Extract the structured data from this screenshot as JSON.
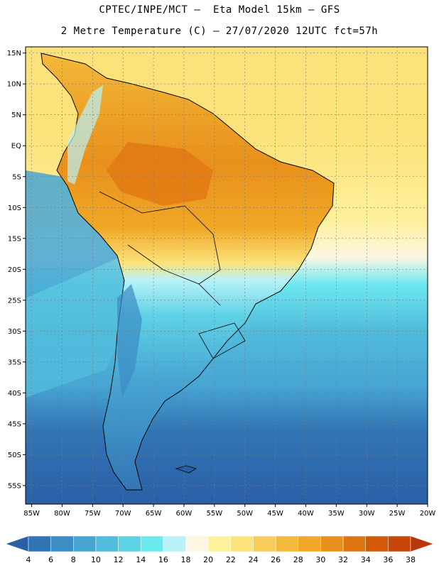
{
  "header": {
    "line1": "CPTEC/INPE/MCT –  Eta Model 15km – GFS",
    "line2": "2 Metre Temperature (C) – 27/07/2020 12UTC fct=57h"
  },
  "map": {
    "lat_range": [
      -58,
      16
    ],
    "lon_range": [
      -86,
      -20
    ],
    "lat_labels": [
      "15N",
      "10N",
      "5N",
      "EQ",
      "5S",
      "10S",
      "15S",
      "20S",
      "25S",
      "30S",
      "35S",
      "40S",
      "45S",
      "50S",
      "55S"
    ],
    "lat_values": [
      15,
      10,
      5,
      0,
      -5,
      -10,
      -15,
      -20,
      -25,
      -30,
      -35,
      -40,
      -45,
      -50,
      -55
    ],
    "lon_labels": [
      "85W",
      "80W",
      "75W",
      "70W",
      "65W",
      "60W",
      "55W",
      "50W",
      "45W",
      "40W",
      "35W",
      "30W",
      "25W",
      "20W"
    ],
    "lon_values": [
      -85,
      -80,
      -75,
      -70,
      -65,
      -60,
      -55,
      -50,
      -45,
      -40,
      -35,
      -30,
      -25,
      -20
    ],
    "grid": true
  },
  "colorbar": {
    "labels": [
      "4",
      "6",
      "8",
      "10",
      "12",
      "14",
      "16",
      "18",
      "20",
      "22",
      "24",
      "26",
      "28",
      "30",
      "32",
      "34",
      "36",
      "38"
    ],
    "colors": [
      "#2a5fa6",
      "#3275b5",
      "#3c8cc6",
      "#47a5d2",
      "#52bcdc",
      "#5fd2e6",
      "#6ce8ef",
      "#b8f2f8",
      "#fdf6e3",
      "#fef19b",
      "#fce27a",
      "#f7cc58",
      "#f2b93a",
      "#f0a826",
      "#e8901c",
      "#e07612",
      "#d45a0a",
      "#c8460a",
      "#b8360a"
    ]
  }
}
